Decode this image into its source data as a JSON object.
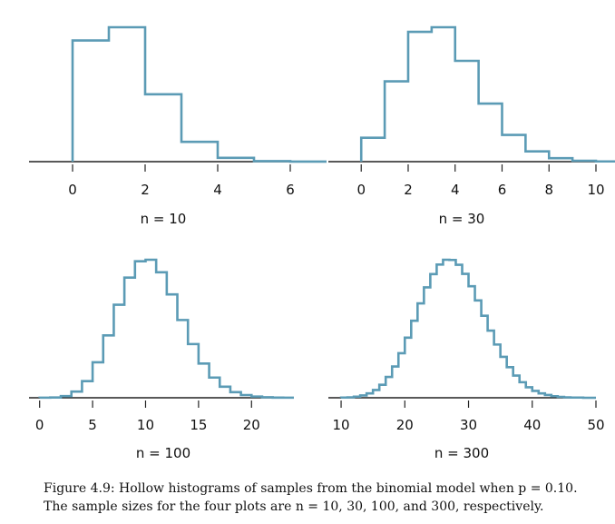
{
  "caption": {
    "line1": "Figure 4.9: Hollow histograms of samples from the binomial model when p = 0.10.",
    "line2": "The sample sizes for the four plots are n = 10, 30, 100, and 300, respectively."
  },
  "colors": {
    "outline": "#5b9bb5",
    "axis": "#222222"
  },
  "chart_data": [
    {
      "type": "bar",
      "style": "hollow-histogram",
      "label": "n = 10",
      "xlim": [
        -1.2,
        6.2
      ],
      "ticks": [
        0,
        2,
        4,
        6
      ],
      "bins": [
        0,
        1,
        2,
        3,
        4,
        5,
        6
      ],
      "values": [
        0.349,
        0.387,
        0.194,
        0.057,
        0.011,
        0.0015,
        0.0001
      ]
    },
    {
      "type": "bar",
      "style": "hollow-histogram",
      "label": "n = 30",
      "xlim": [
        -1.4,
        10.0
      ],
      "ticks": [
        0,
        2,
        4,
        6,
        8,
        10
      ],
      "bins": [
        0,
        1,
        2,
        3,
        4,
        5,
        6,
        7,
        8,
        9,
        10
      ],
      "values": [
        0.042,
        0.141,
        0.228,
        0.236,
        0.177,
        0.102,
        0.047,
        0.018,
        0.006,
        0.0016,
        0.0004
      ]
    },
    {
      "type": "bar",
      "style": "hollow-histogram",
      "label": "n = 100",
      "xlim": [
        -1.0,
        24.0
      ],
      "ticks": [
        0,
        5,
        10,
        15,
        20
      ],
      "bins": [
        0,
        1,
        2,
        3,
        4,
        5,
        6,
        7,
        8,
        9,
        10,
        11,
        12,
        13,
        14,
        15,
        16,
        17,
        18,
        19,
        20,
        21,
        22,
        23
      ],
      "values": [
        0.0001,
        0.0003,
        0.0016,
        0.0059,
        0.0159,
        0.0339,
        0.0596,
        0.0889,
        0.1148,
        0.1304,
        0.1319,
        0.1199,
        0.0988,
        0.0743,
        0.0513,
        0.0327,
        0.0193,
        0.0106,
        0.0054,
        0.0026,
        0.0012,
        0.0005,
        0.0002,
        0.0001
      ]
    },
    {
      "type": "bar",
      "style": "hollow-histogram",
      "label": "n = 300",
      "xlim": [
        8.0,
        50.0
      ],
      "ticks": [
        10,
        20,
        30,
        40,
        50
      ],
      "bins": [
        10,
        11,
        12,
        13,
        14,
        15,
        16,
        17,
        18,
        19,
        20,
        21,
        22,
        23,
        24,
        25,
        26,
        27,
        28,
        29,
        30,
        31,
        32,
        33,
        34,
        35,
        36,
        37,
        38,
        39,
        40,
        41,
        42,
        43,
        44,
        45,
        46,
        47,
        48,
        49
      ],
      "values": [
        0.0001,
        0.0002,
        0.0005,
        0.001,
        0.0019,
        0.0034,
        0.0057,
        0.0091,
        0.0137,
        0.0195,
        0.0263,
        0.0337,
        0.0413,
        0.0483,
        0.0541,
        0.0583,
        0.0604,
        0.0603,
        0.0582,
        0.0542,
        0.0488,
        0.0426,
        0.0359,
        0.0294,
        0.0233,
        0.0179,
        0.0134,
        0.0097,
        0.0068,
        0.0046,
        0.003,
        0.0019,
        0.0012,
        0.0007,
        0.0004,
        0.0002,
        0.0001,
        0.0001,
        0.0,
        0.0
      ]
    }
  ]
}
